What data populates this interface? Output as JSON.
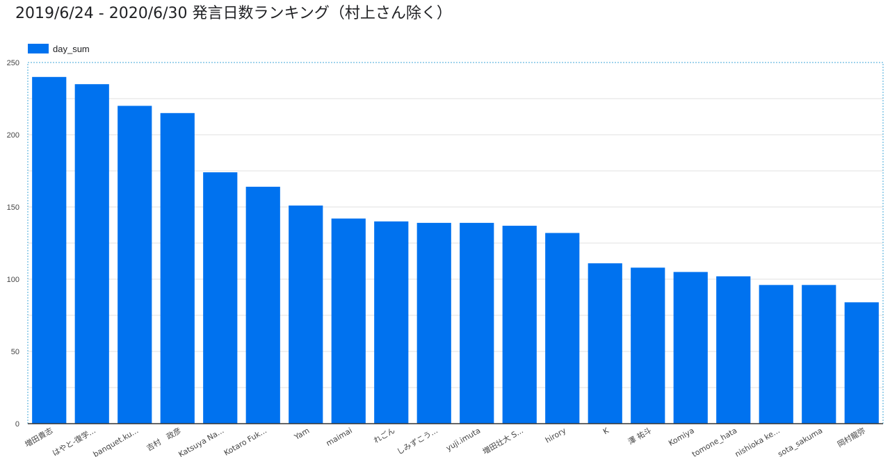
{
  "title": "2019/6/24 - 2020/6/30 発言日数ランキング（村上さん除く）",
  "colors": {
    "bar": "#0072ef",
    "grid": "#e0e0e0",
    "border": "#3fa7d8",
    "axis": "#333333"
  },
  "chart_data": {
    "type": "bar",
    "title": "2019/6/24 - 2020/6/30 発言日数ランキング（村上さん除く）",
    "xlabel": "",
    "ylabel": "",
    "ylim": [
      0,
      250
    ],
    "yticks": [
      0,
      50,
      100,
      150,
      200,
      250
    ],
    "grid": true,
    "legend_position": "top-left",
    "categories": [
      "増田貴志",
      "はやと-復学...",
      "banquet.ku...",
      "吉村　政彦",
      "Katsuya Na...",
      "Kotaro Fuk...",
      "Yam",
      "maimai",
      "れごん",
      "しみずこう...",
      "yuji.imuta",
      "増田壮大 S...",
      "hirory",
      "K",
      "澤 祐斗",
      "Komiya",
      "tomone_hata",
      "nishioka ke...",
      "sota_sakuma",
      "岡村龍弥"
    ],
    "series": [
      {
        "name": "day_sum",
        "values": [
          240,
          235,
          220,
          215,
          174,
          164,
          151,
          142,
          140,
          139,
          139,
          137,
          132,
          111,
          108,
          105,
          102,
          96,
          96,
          84
        ]
      }
    ]
  }
}
